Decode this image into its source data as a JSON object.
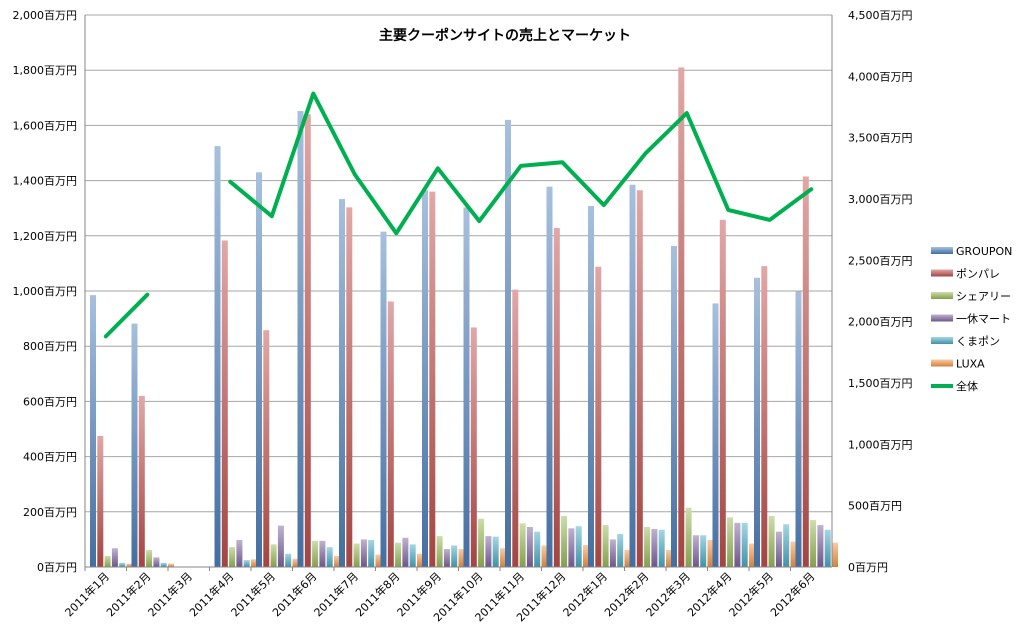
{
  "chart_data": {
    "type": "bar",
    "title": "主要クーポンサイトの売上とマーケット",
    "categories": [
      "2011年1月",
      "2011年2月",
      "2011年3月",
      "2011年4月",
      "2011年5月",
      "2011年6月",
      "2011年7月",
      "2011年8月",
      "2011年9月",
      "2011年10月",
      "2011年11月",
      "2011年12月",
      "2012年1月",
      "2012年2月",
      "2012年3月",
      "2012年4月",
      "2012年5月",
      "2012年6月"
    ],
    "y_left": {
      "ylim": [
        0,
        2000
      ],
      "ticks": [
        0,
        200,
        400,
        600,
        800,
        1000,
        1200,
        1400,
        1600,
        1800,
        2000
      ],
      "tick_labels": [
        "0百万円",
        "200百万円",
        "400百万円",
        "600百万円",
        "800百万円",
        "1,000百万円",
        "1,200百万円",
        "1,400百万円",
        "1,600百万円",
        "1,800百万円",
        "2,000百万円"
      ]
    },
    "y_right": {
      "ylim": [
        0,
        4500
      ],
      "ticks": [
        0,
        500,
        1000,
        1500,
        2000,
        2500,
        3000,
        3500,
        4000,
        4500
      ],
      "tick_labels": [
        "0百万円",
        "500百万円",
        "1,000百万円",
        "1,500百万円",
        "2,000百万円",
        "2,500百万円",
        "3,000百万円",
        "3,500百万円",
        "4,000百万円",
        "4,500百万円"
      ]
    },
    "grid": "horizontal",
    "legend_position": "right",
    "series": [
      {
        "name": "GROUPON",
        "type": "bar",
        "axis": "left",
        "color": "#4F81BD",
        "values": [
          985,
          882,
          0,
          1525,
          1430,
          1652,
          1333,
          1215,
          1365,
          1303,
          1620,
          1378,
          1308,
          1385,
          1163,
          955,
          1048,
          998
        ]
      },
      {
        "name": "ポンパレ",
        "type": "bar",
        "axis": "left",
        "color": "#C0504D",
        "values": [
          475,
          620,
          0,
          1183,
          858,
          1640,
          1303,
          962,
          1360,
          868,
          1005,
          1228,
          1088,
          1365,
          1810,
          1258,
          1090,
          1415
        ]
      },
      {
        "name": "シェアリー",
        "type": "bar",
        "axis": "left",
        "color": "#9BBB59",
        "values": [
          40,
          62,
          0,
          72,
          82,
          95,
          85,
          88,
          112,
          175,
          158,
          185,
          152,
          145,
          215,
          180,
          185,
          170
        ]
      },
      {
        "name": "一休マート",
        "type": "bar",
        "axis": "left",
        "color": "#8064A2",
        "values": [
          68,
          35,
          0,
          98,
          150,
          95,
          100,
          106,
          65,
          112,
          145,
          140,
          100,
          138,
          115,
          160,
          128,
          152
        ]
      },
      {
        "name": "くまポン",
        "type": "bar",
        "axis": "left",
        "color": "#4BACC6",
        "values": [
          15,
          15,
          0,
          25,
          48,
          72,
          98,
          82,
          78,
          110,
          128,
          148,
          120,
          135,
          115,
          160,
          155,
          135
        ]
      },
      {
        "name": "LUXA",
        "type": "bar",
        "axis": "left",
        "color": "#F79646",
        "values": [
          12,
          12,
          0,
          28,
          30,
          40,
          45,
          48,
          65,
          68,
          78,
          80,
          62,
          62,
          98,
          85,
          92,
          88
        ]
      },
      {
        "name": "全体",
        "type": "line",
        "axis": "right",
        "color": "#00B050",
        "values": [
          1880,
          2220,
          null,
          3140,
          2860,
          3860,
          3200,
          2720,
          3250,
          2820,
          3270,
          3300,
          2950,
          3370,
          3700,
          2910,
          2830,
          3080
        ]
      }
    ]
  }
}
